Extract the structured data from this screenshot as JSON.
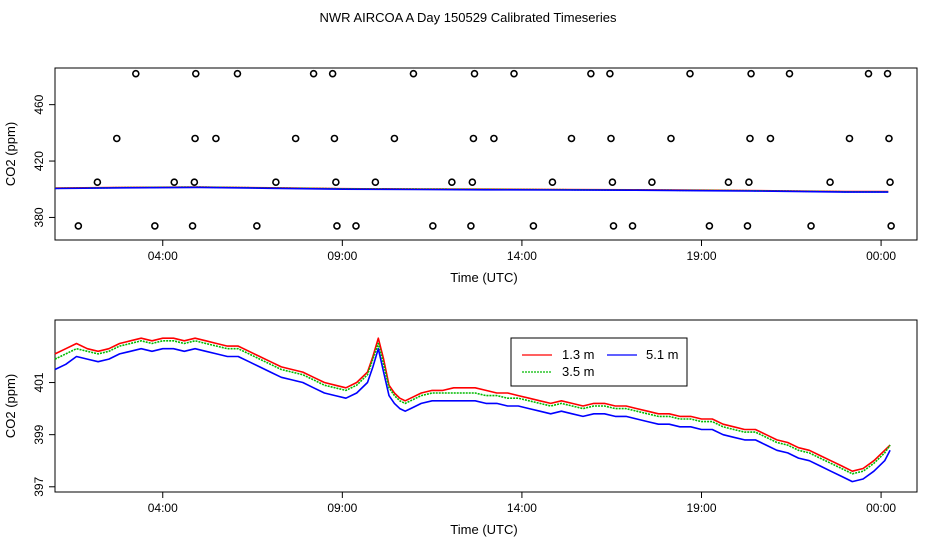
{
  "title": "NWR AIRCOA A  Day 150529  Calibrated Timeseries",
  "colors": {
    "series_1_3m": "#ff0000",
    "series_3_5m": "#00bb00",
    "series_5_1m": "#0000ff",
    "flag_points": "#000000",
    "axis": "#000000"
  },
  "chart_data": [
    {
      "type": "scatter",
      "title": "",
      "xlabel": "Time (UTC)",
      "ylabel": "CO2 (ppm)",
      "xlim": [
        0,
        24
      ],
      "ylim": [
        364,
        486
      ],
      "x_ticks": [
        3,
        8,
        13,
        18,
        23
      ],
      "x_tick_labels": [
        "04:00",
        "09:00",
        "14:00",
        "19:00",
        "00:00"
      ],
      "y_ticks": [
        380,
        420,
        460
      ],
      "y_tick_labels": [
        "380",
        "420",
        "460"
      ],
      "legend": "none",
      "grid": false,
      "flag_levels": {
        "cal_high": 482,
        "cal_mid_high": 436,
        "cal_mid_low": 405,
        "cal_low": 374
      },
      "flag_points": [
        {
          "x": 0.65,
          "y": 374
        },
        {
          "x": 1.18,
          "y": 405
        },
        {
          "x": 1.72,
          "y": 436
        },
        {
          "x": 2.25,
          "y": 482
        },
        {
          "x": 2.78,
          "y": 374
        },
        {
          "x": 3.32,
          "y": 405
        },
        {
          "x": 3.83,
          "y": 374
        },
        {
          "x": 3.88,
          "y": 405
        },
        {
          "x": 3.9,
          "y": 436
        },
        {
          "x": 3.92,
          "y": 482
        },
        {
          "x": 4.48,
          "y": 436
        },
        {
          "x": 5.08,
          "y": 482
        },
        {
          "x": 5.62,
          "y": 374
        },
        {
          "x": 6.15,
          "y": 405
        },
        {
          "x": 6.7,
          "y": 436
        },
        {
          "x": 7.2,
          "y": 482
        },
        {
          "x": 7.73,
          "y": 482
        },
        {
          "x": 7.78,
          "y": 436
        },
        {
          "x": 7.82,
          "y": 405
        },
        {
          "x": 7.85,
          "y": 374
        },
        {
          "x": 8.38,
          "y": 374
        },
        {
          "x": 8.92,
          "y": 405
        },
        {
          "x": 9.45,
          "y": 436
        },
        {
          "x": 9.98,
          "y": 482
        },
        {
          "x": 10.52,
          "y": 374
        },
        {
          "x": 11.05,
          "y": 405
        },
        {
          "x": 11.58,
          "y": 374
        },
        {
          "x": 11.62,
          "y": 405
        },
        {
          "x": 11.65,
          "y": 436
        },
        {
          "x": 11.68,
          "y": 482
        },
        {
          "x": 12.22,
          "y": 436
        },
        {
          "x": 12.78,
          "y": 482
        },
        {
          "x": 13.32,
          "y": 374
        },
        {
          "x": 13.85,
          "y": 405
        },
        {
          "x": 14.38,
          "y": 436
        },
        {
          "x": 14.92,
          "y": 482
        },
        {
          "x": 15.45,
          "y": 482
        },
        {
          "x": 15.48,
          "y": 436
        },
        {
          "x": 15.52,
          "y": 405
        },
        {
          "x": 15.55,
          "y": 374
        },
        {
          "x": 16.08,
          "y": 374
        },
        {
          "x": 16.62,
          "y": 405
        },
        {
          "x": 17.15,
          "y": 436
        },
        {
          "x": 17.68,
          "y": 482
        },
        {
          "x": 18.22,
          "y": 374
        },
        {
          "x": 18.75,
          "y": 405
        },
        {
          "x": 19.28,
          "y": 374
        },
        {
          "x": 19.32,
          "y": 405
        },
        {
          "x": 19.35,
          "y": 436
        },
        {
          "x": 19.38,
          "y": 482
        },
        {
          "x": 19.92,
          "y": 436
        },
        {
          "x": 20.45,
          "y": 482
        },
        {
          "x": 21.05,
          "y": 374
        },
        {
          "x": 21.58,
          "y": 405
        },
        {
          "x": 22.12,
          "y": 436
        },
        {
          "x": 22.65,
          "y": 482
        },
        {
          "x": 23.18,
          "y": 482
        },
        {
          "x": 23.22,
          "y": 436
        },
        {
          "x": 23.25,
          "y": 405
        },
        {
          "x": 23.28,
          "y": 374
        }
      ],
      "series": [
        {
          "name": "1.3 m",
          "color": "#ff0000",
          "x": [
            0,
            2,
            4,
            6,
            8,
            10,
            12,
            14,
            16,
            18,
            20,
            22,
            23.2
          ],
          "values": [
            400.8,
            401.3,
            401.6,
            401.0,
            400.4,
            400.2,
            400.0,
            399.8,
            399.6,
            399.3,
            398.9,
            398.3,
            398.3
          ]
        },
        {
          "name": "3.5 m",
          "color": "#00bb00",
          "x": [
            0,
            2,
            4,
            6,
            8,
            10,
            12,
            14,
            16,
            18,
            20,
            22,
            23.2
          ],
          "values": [
            400.7,
            401.2,
            401.5,
            400.9,
            400.3,
            400.1,
            399.9,
            399.7,
            399.5,
            399.2,
            398.8,
            398.2,
            398.2
          ]
        },
        {
          "name": "5.1 m",
          "color": "#0000ff",
          "x": [
            0,
            2,
            4,
            6,
            8,
            10,
            12,
            14,
            16,
            18,
            20,
            22,
            23.2
          ],
          "values": [
            400.5,
            401.0,
            401.3,
            400.7,
            400.0,
            399.8,
            399.6,
            399.5,
            399.3,
            399.0,
            398.6,
            398.0,
            398.0
          ]
        }
      ]
    },
    {
      "type": "line",
      "title": "",
      "xlabel": "Time (UTC)",
      "ylabel": "CO2 (ppm)",
      "xlim": [
        0,
        24
      ],
      "ylim": [
        396.8,
        403.4
      ],
      "x_ticks": [
        3,
        8,
        13,
        18,
        23
      ],
      "x_tick_labels": [
        "04:00",
        "09:00",
        "14:00",
        "19:00",
        "00:00"
      ],
      "y_ticks": [
        397,
        399,
        401
      ],
      "y_tick_labels": [
        "397",
        "399",
        "401"
      ],
      "legend": "top-center",
      "grid": false,
      "x": [
        0.0,
        0.3,
        0.6,
        0.9,
        1.2,
        1.5,
        1.8,
        2.1,
        2.4,
        2.7,
        3.0,
        3.3,
        3.6,
        3.9,
        4.2,
        4.5,
        4.8,
        5.1,
        5.4,
        5.7,
        6.0,
        6.3,
        6.6,
        6.9,
        7.2,
        7.5,
        7.8,
        8.1,
        8.4,
        8.7,
        8.85,
        9.0,
        9.15,
        9.3,
        9.45,
        9.6,
        9.75,
        9.9,
        10.2,
        10.5,
        10.8,
        11.1,
        11.4,
        11.7,
        12.0,
        12.3,
        12.6,
        12.9,
        13.2,
        13.5,
        13.8,
        14.1,
        14.4,
        14.7,
        15.0,
        15.3,
        15.6,
        15.9,
        16.2,
        16.5,
        16.8,
        17.1,
        17.4,
        17.7,
        18.0,
        18.3,
        18.6,
        18.9,
        19.2,
        19.5,
        19.8,
        20.1,
        20.4,
        20.7,
        21.0,
        21.3,
        21.6,
        21.9,
        22.2,
        22.5,
        22.8,
        23.1,
        23.25
      ],
      "series": [
        {
          "name": "1.3 m",
          "color": "#ff0000",
          "values": [
            402.1,
            402.3,
            402.5,
            402.3,
            402.2,
            402.3,
            402.5,
            402.6,
            402.7,
            402.6,
            402.7,
            402.7,
            402.6,
            402.7,
            402.6,
            402.5,
            402.4,
            402.4,
            402.2,
            402.0,
            401.8,
            401.6,
            401.5,
            401.4,
            401.2,
            401.0,
            400.9,
            400.8,
            401.0,
            401.4,
            402.0,
            402.7,
            401.9,
            400.9,
            400.6,
            400.4,
            400.3,
            400.4,
            400.6,
            400.7,
            400.7,
            400.8,
            400.8,
            400.8,
            400.7,
            400.6,
            400.6,
            400.5,
            400.4,
            400.3,
            400.2,
            400.3,
            400.2,
            400.1,
            400.2,
            400.2,
            400.1,
            400.1,
            400.0,
            399.9,
            399.8,
            399.8,
            399.7,
            399.7,
            399.6,
            399.6,
            399.4,
            399.3,
            399.2,
            399.2,
            399.0,
            398.8,
            398.7,
            398.5,
            398.4,
            398.2,
            398.0,
            397.8,
            397.6,
            397.7,
            398.0,
            398.4,
            398.6
          ]
        },
        {
          "name": "3.5 m",
          "color": "#00bb00",
          "values": [
            401.9,
            402.1,
            402.3,
            402.2,
            402.1,
            402.2,
            402.4,
            402.5,
            402.6,
            402.5,
            402.6,
            402.6,
            402.5,
            402.6,
            402.5,
            402.4,
            402.3,
            402.3,
            402.1,
            401.9,
            401.7,
            401.5,
            401.4,
            401.3,
            401.1,
            400.9,
            400.8,
            400.7,
            400.9,
            401.3,
            401.9,
            402.5,
            401.7,
            400.8,
            400.5,
            400.3,
            400.2,
            400.3,
            400.5,
            400.6,
            400.6,
            400.6,
            400.6,
            400.6,
            400.5,
            400.5,
            400.4,
            400.4,
            400.3,
            400.2,
            400.1,
            400.2,
            400.1,
            400.0,
            400.1,
            400.1,
            400.0,
            400.0,
            399.9,
            399.8,
            399.7,
            399.7,
            399.6,
            399.6,
            399.5,
            399.5,
            399.3,
            399.2,
            399.1,
            399.1,
            398.9,
            398.7,
            398.6,
            398.4,
            398.3,
            398.1,
            397.9,
            397.7,
            397.5,
            397.6,
            397.9,
            398.3,
            398.6
          ]
        },
        {
          "name": "5.1 m",
          "color": "#0000ff",
          "values": [
            401.5,
            401.7,
            402.0,
            401.9,
            401.8,
            401.9,
            402.1,
            402.2,
            402.3,
            402.2,
            402.3,
            402.3,
            402.2,
            402.3,
            402.2,
            402.1,
            402.0,
            402.0,
            401.8,
            401.6,
            401.4,
            401.2,
            401.1,
            401.0,
            400.8,
            400.6,
            400.5,
            400.4,
            400.6,
            401.0,
            401.6,
            402.3,
            401.4,
            400.5,
            400.2,
            400.0,
            399.9,
            400.0,
            400.2,
            400.3,
            400.3,
            400.3,
            400.3,
            400.3,
            400.2,
            400.2,
            400.1,
            400.1,
            400.0,
            399.9,
            399.8,
            399.9,
            399.8,
            399.7,
            399.8,
            399.8,
            399.7,
            399.7,
            399.6,
            399.5,
            399.4,
            399.4,
            399.3,
            399.3,
            399.2,
            399.2,
            399.0,
            398.9,
            398.8,
            398.8,
            398.6,
            398.4,
            398.3,
            398.1,
            398.0,
            397.8,
            397.6,
            397.4,
            397.2,
            397.3,
            397.6,
            398.0,
            398.4
          ]
        }
      ]
    }
  ]
}
